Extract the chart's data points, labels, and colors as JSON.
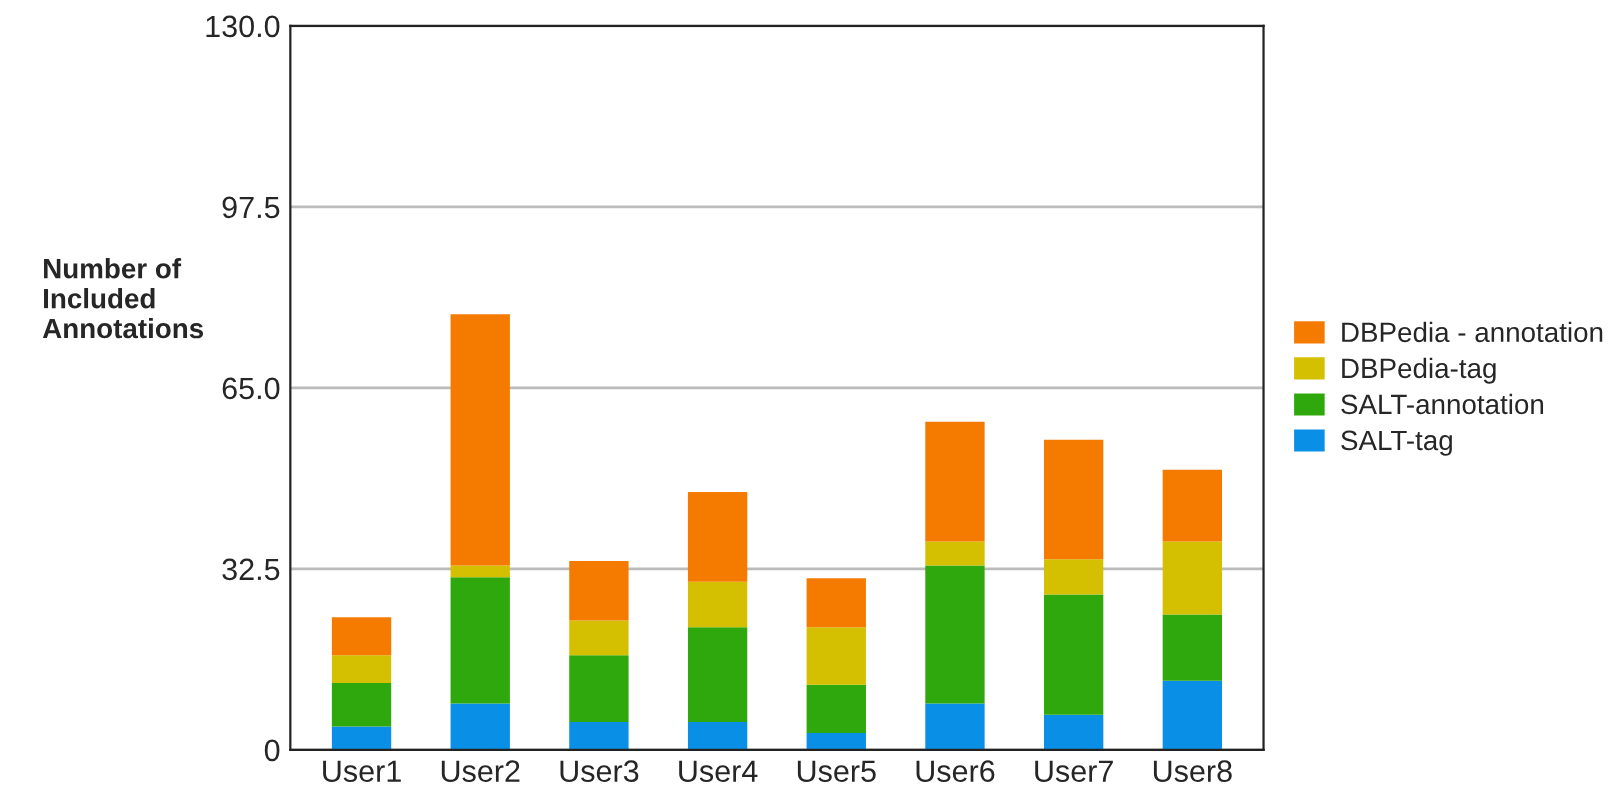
{
  "chart_data": {
    "type": "bar",
    "stacked": true,
    "ylabel": "Number of\nIncluded\nAnnotations",
    "categories": [
      "User1",
      "User2",
      "User3",
      "User4",
      "User5",
      "User6",
      "User7",
      "User8"
    ],
    "series": [
      {
        "name": "SALT-tag",
        "color": "#0a8fe6",
        "values": [
          4.2,
          8.3,
          5,
          5,
          3,
          8.3,
          6.3,
          12.4
        ]
      },
      {
        "name": "SALT-annotation",
        "color": "#2ea80c",
        "values": [
          7.8,
          22.7,
          12,
          17,
          8.7,
          24.8,
          21.6,
          11.9
        ]
      },
      {
        "name": "DBPedia-tag",
        "color": "#d4c000",
        "values": [
          5,
          2.1,
          6.2,
          8.2,
          10.3,
          4.3,
          6.3,
          13.1
        ]
      },
      {
        "name": "DBPedia - annotation",
        "color": "#f47a00",
        "values": [
          6.8,
          45.1,
          10.7,
          16.1,
          8.8,
          21.5,
          21.5,
          12.9
        ]
      }
    ],
    "ylim": [
      0,
      130
    ],
    "yticks": [
      {
        "value": 0,
        "label": "0"
      },
      32.5,
      {
        "value": 65,
        "label": "65.0"
      },
      97.5,
      {
        "value": 130,
        "label": "130.0"
      }
    ],
    "grid": "y",
    "legend": "right"
  }
}
